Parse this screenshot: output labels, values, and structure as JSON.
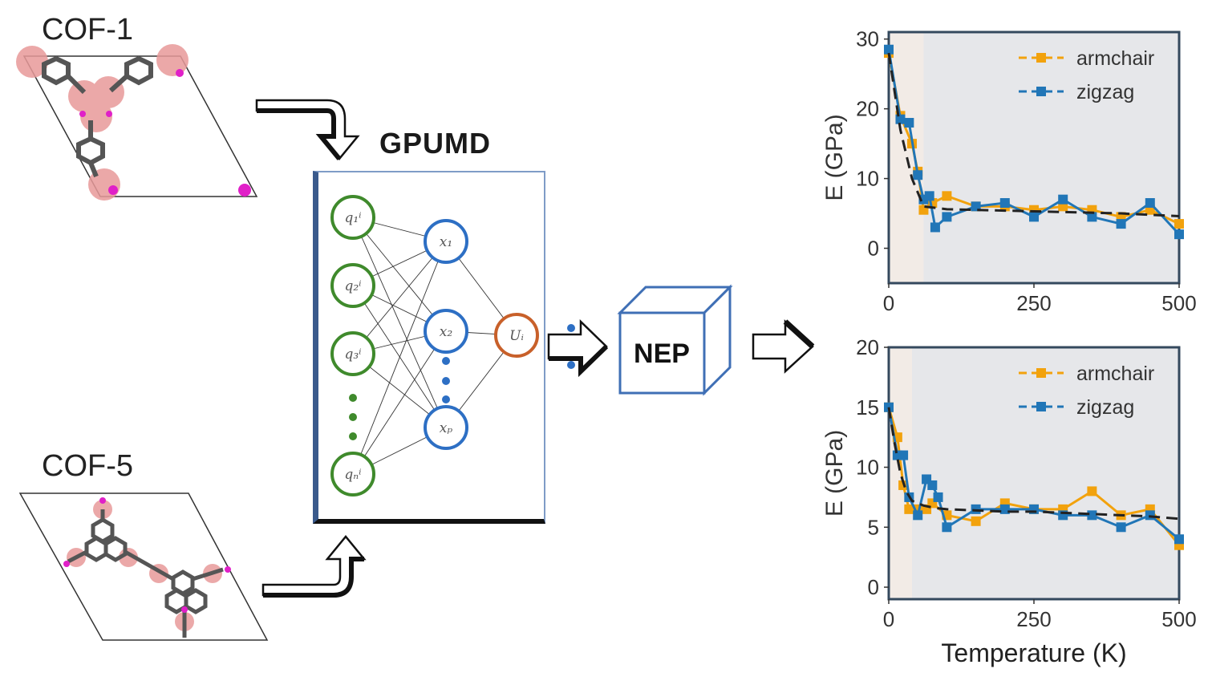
{
  "structures": {
    "top_label": "COF-1",
    "bottom_label": "COF-5"
  },
  "network": {
    "title": "GPUMD",
    "inputs": [
      "q₁ⁱ",
      "q₂ⁱ",
      "q₃ⁱ",
      "qₙⁱ"
    ],
    "hidden": [
      "x₁",
      "x₂",
      "xₚ"
    ],
    "output": "Uᵢ"
  },
  "nep": {
    "label": "NEP"
  },
  "colors": {
    "input_node": "#3f8a2c",
    "hidden_node": "#2d6fc4",
    "output_node": "#c8602a",
    "armchair": "#f2a20d",
    "zigzag": "#2176b7",
    "panel_border": "#34495e"
  },
  "chart_data": [
    {
      "type": "line",
      "ylabel": "E (GPa)",
      "xlabel": "",
      "xlim": [
        0,
        500
      ],
      "ylim": [
        -5,
        31
      ],
      "xticks": [
        0,
        250,
        500
      ],
      "yticks": [
        0,
        10,
        20,
        30
      ],
      "shaded_until": 60,
      "legend": "top-right",
      "series": [
        {
          "name": "armchair",
          "x": [
            0,
            20,
            40,
            50,
            60,
            75,
            100,
            150,
            200,
            250,
            300,
            350,
            400,
            450,
            500
          ],
          "y": [
            28,
            19,
            15,
            11,
            5.5,
            6.5,
            7.5,
            6,
            6,
            5.5,
            6,
            5.5,
            4.5,
            5.5,
            3.5
          ]
        },
        {
          "name": "zigzag",
          "x": [
            0,
            20,
            35,
            50,
            60,
            70,
            80,
            100,
            150,
            200,
            250,
            300,
            350,
            400,
            450,
            500
          ],
          "y": [
            28.5,
            18.5,
            18,
            10.5,
            7,
            7.5,
            3,
            4.5,
            6,
            6.5,
            4.5,
            7,
            4.5,
            3.5,
            6.5,
            2
          ]
        }
      ],
      "fit": {
        "x": [
          0,
          20,
          40,
          60,
          80,
          100,
          150,
          200,
          250,
          300,
          350,
          400,
          450,
          500
        ],
        "y": [
          28,
          17,
          10,
          6,
          5.8,
          5.6,
          5.5,
          5.4,
          5.3,
          5.2,
          5.1,
          5,
          4.8,
          4.6
        ]
      }
    },
    {
      "type": "line",
      "ylabel": "E (GPa)",
      "xlabel": "Temperature (K)",
      "xlim": [
        0,
        500
      ],
      "ylim": [
        -1,
        20
      ],
      "xticks": [
        0,
        250,
        500
      ],
      "yticks": [
        0,
        5,
        10,
        15,
        20
      ],
      "shaded_until": 40,
      "legend": "top-right",
      "series": [
        {
          "name": "armchair",
          "x": [
            0,
            15,
            25,
            35,
            50,
            65,
            75,
            100,
            150,
            200,
            250,
            300,
            350,
            400,
            450,
            500
          ],
          "y": [
            15,
            12.5,
            8.5,
            6.5,
            6.5,
            6.5,
            7,
            6,
            5.5,
            7,
            6.5,
            6.5,
            8,
            6,
            6.5,
            3.5
          ]
        },
        {
          "name": "zigzag",
          "x": [
            0,
            15,
            25,
            35,
            50,
            65,
            75,
            85,
            100,
            150,
            200,
            250,
            300,
            350,
            400,
            450,
            500
          ],
          "y": [
            15,
            11,
            11,
            7.5,
            6,
            9,
            8.5,
            7.5,
            5,
            6.5,
            6.5,
            6.5,
            6,
            6,
            5,
            6,
            4
          ]
        }
      ],
      "fit": {
        "x": [
          0,
          10,
          20,
          30,
          40,
          60,
          80,
          100,
          150,
          200,
          250,
          300,
          350,
          400,
          450,
          500
        ],
        "y": [
          15,
          12,
          9.5,
          8,
          7.2,
          6.8,
          6.6,
          6.5,
          6.4,
          6.3,
          6.3,
          6.2,
          6.1,
          6,
          5.9,
          5.7
        ]
      }
    }
  ]
}
